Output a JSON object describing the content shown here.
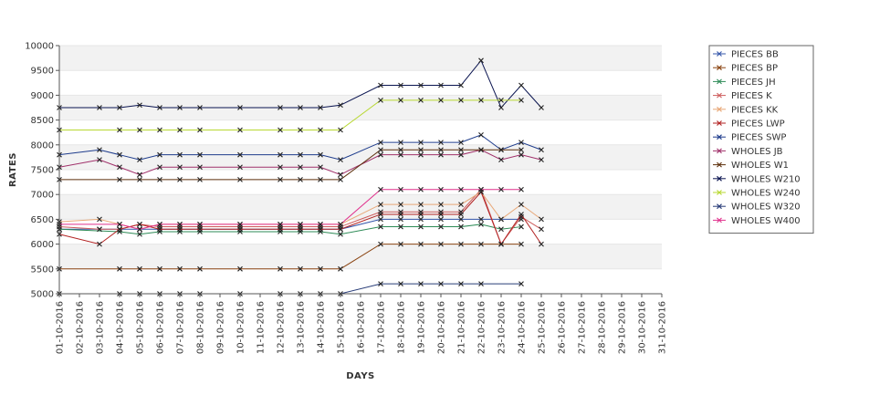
{
  "chart_data": {
    "type": "line",
    "xlabel": "DAYS",
    "ylabel": "RATES",
    "ylim": [
      5000,
      10000
    ],
    "yticks": [
      5000,
      5500,
      6000,
      6500,
      7000,
      7500,
      8000,
      8500,
      9000,
      9500,
      10000
    ],
    "categories": [
      "01-10-2016",
      "02-10-2016",
      "03-10-2016",
      "04-10-2016",
      "05-10-2016",
      "06-10-2016",
      "07-10-2016",
      "08-10-2016",
      "09-10-2016",
      "10-10-2016",
      "11-10-2016",
      "12-10-2016",
      "13-10-2016",
      "14-10-2016",
      "15-10-2016",
      "16-10-2016",
      "17-10-2016",
      "18-10-2016",
      "19-10-2016",
      "20-10-2016",
      "21-10-2016",
      "22-10-2016",
      "23-10-2016",
      "24-10-2016",
      "25-10-2016",
      "26-10-2016",
      "27-10-2016",
      "28-10-2016",
      "29-10-2016",
      "30-10-2016",
      "31-10-2016"
    ],
    "grid": true,
    "legend_position": "right",
    "series": [
      {
        "name": "PIECES BB",
        "color": "#3355aa",
        "values": [
          6300,
          null,
          6300,
          6300,
          6300,
          6300,
          6300,
          6300,
          null,
          6300,
          null,
          6300,
          6300,
          6300,
          6300,
          null,
          6500,
          6500,
          6500,
          6500,
          6500,
          6500,
          6500,
          6500,
          null,
          null,
          null,
          null,
          null,
          null,
          null
        ]
      },
      {
        "name": "PIECES BP",
        "color": "#8b4513",
        "values": [
          5500,
          null,
          null,
          5500,
          5500,
          5500,
          5500,
          5500,
          null,
          5500,
          null,
          5500,
          5500,
          5500,
          5500,
          null,
          6000,
          6000,
          6000,
          6000,
          6000,
          6000,
          6000,
          6000,
          null,
          null,
          null,
          null,
          null,
          null,
          null
        ]
      },
      {
        "name": "PIECES JH",
        "color": "#2e8b57",
        "values": [
          6300,
          null,
          null,
          6250,
          6200,
          6250,
          6250,
          6250,
          null,
          6250,
          null,
          6250,
          6250,
          6250,
          6200,
          null,
          6350,
          6350,
          6350,
          6350,
          6350,
          6400,
          6300,
          6350,
          null,
          null,
          null,
          null,
          null,
          null,
          null
        ]
      },
      {
        "name": "PIECES K",
        "color": "#cd5c5c",
        "values": [
          6350,
          null,
          6300,
          6300,
          6400,
          6350,
          6350,
          6350,
          null,
          6350,
          null,
          6350,
          6350,
          6350,
          6350,
          null,
          6650,
          6650,
          6650,
          6650,
          6650,
          7100,
          6000,
          6550,
          6300,
          null,
          null,
          null,
          null,
          null,
          null
        ]
      },
      {
        "name": "PIECES KK",
        "color": "#e8a878",
        "values": [
          6450,
          null,
          6500,
          6400,
          6300,
          6400,
          6400,
          6400,
          null,
          6400,
          null,
          6400,
          6400,
          6400,
          6400,
          null,
          6800,
          6800,
          6800,
          6800,
          6800,
          7050,
          6500,
          6800,
          6500,
          null,
          null,
          null,
          null,
          null,
          null
        ]
      },
      {
        "name": "PIECES LWP",
        "color": "#b22222",
        "values": [
          6200,
          null,
          6000,
          6300,
          6400,
          6300,
          6300,
          6300,
          null,
          6300,
          null,
          6300,
          6300,
          6300,
          6300,
          null,
          6600,
          6600,
          6600,
          6600,
          6600,
          7050,
          6000,
          6600,
          6000,
          null,
          null,
          null,
          null,
          null,
          null
        ]
      },
      {
        "name": "PIECES SWP",
        "color": "#1e3c8c",
        "values": [
          7800,
          null,
          7900,
          7800,
          7700,
          7800,
          7800,
          7800,
          null,
          7800,
          null,
          7800,
          7800,
          7800,
          7700,
          null,
          8050,
          8050,
          8050,
          8050,
          8050,
          8200,
          7900,
          8050,
          7900,
          null,
          null,
          null,
          null,
          null,
          null
        ]
      },
      {
        "name": "WHOLES JB",
        "color": "#a0306a",
        "values": [
          7550,
          null,
          7700,
          7550,
          7400,
          7550,
          7550,
          7550,
          null,
          7550,
          null,
          7550,
          7550,
          7550,
          7400,
          null,
          7800,
          7800,
          7800,
          7800,
          7800,
          7900,
          7700,
          7800,
          7700,
          null,
          null,
          null,
          null,
          null,
          null
        ]
      },
      {
        "name": "WHOLES W1",
        "color": "#5c2e0a",
        "values": [
          7300,
          null,
          null,
          7300,
          7300,
          7300,
          7300,
          7300,
          null,
          7300,
          null,
          7300,
          7300,
          7300,
          7300,
          null,
          7900,
          7900,
          7900,
          7900,
          7900,
          7900,
          7900,
          7900,
          null,
          null,
          null,
          null,
          null,
          null,
          null
        ]
      },
      {
        "name": "WHOLES W210",
        "color": "#0a1450",
        "values": [
          8750,
          null,
          8750,
          8750,
          8800,
          8750,
          8750,
          8750,
          null,
          8750,
          null,
          8750,
          8750,
          8750,
          8800,
          null,
          9200,
          9200,
          9200,
          9200,
          9200,
          9700,
          8750,
          9200,
          8750,
          null,
          null,
          null,
          null,
          null,
          null
        ]
      },
      {
        "name": "WHOLES W240",
        "color": "#b8d832",
        "values": [
          8300,
          null,
          null,
          8300,
          8300,
          8300,
          8300,
          8300,
          null,
          8300,
          null,
          8300,
          8300,
          8300,
          8300,
          null,
          8900,
          8900,
          8900,
          8900,
          8900,
          8900,
          8900,
          8900,
          null,
          null,
          null,
          null,
          null,
          null,
          null
        ]
      },
      {
        "name": "WHOLES W320",
        "color": "#283c78",
        "values": [
          5000,
          null,
          null,
          5000,
          5000,
          5000,
          5000,
          5000,
          null,
          5000,
          null,
          5000,
          5000,
          5000,
          5000,
          null,
          5200,
          5200,
          5200,
          5200,
          5200,
          5200,
          null,
          5200,
          null,
          null,
          null,
          null,
          null,
          null,
          null
        ]
      },
      {
        "name": "WHOLES W400",
        "color": "#e0308c",
        "values": [
          6400,
          null,
          null,
          6400,
          6300,
          6400,
          6400,
          6400,
          null,
          6400,
          null,
          6400,
          6400,
          6400,
          6400,
          null,
          7100,
          7100,
          7100,
          7100,
          7100,
          7100,
          7100,
          7100,
          null,
          null,
          null,
          null,
          null,
          null,
          null
        ]
      }
    ]
  }
}
